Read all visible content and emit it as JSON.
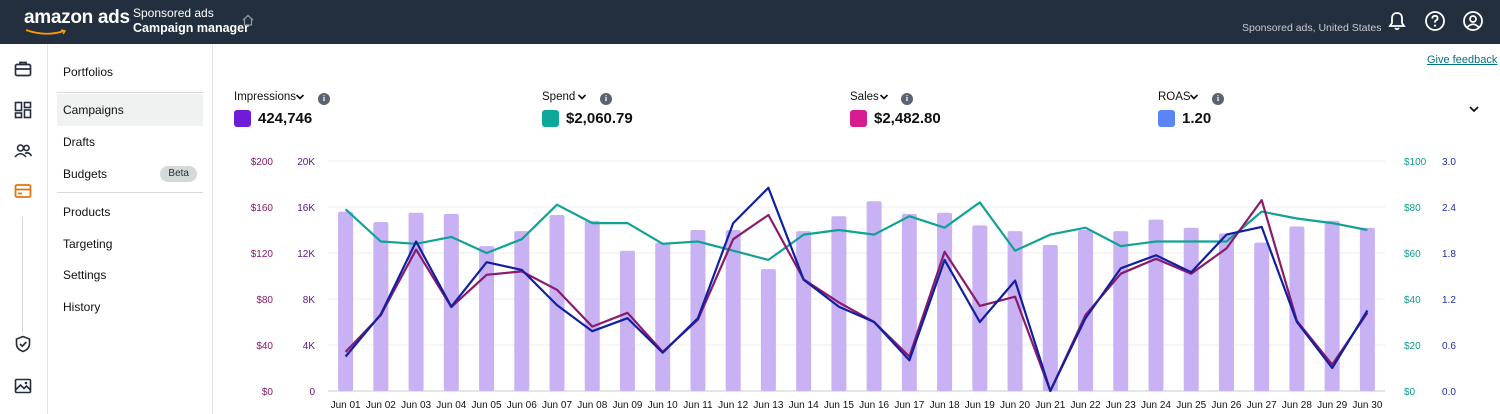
{
  "header": {
    "logo_text": "amazon ads",
    "breadcrumb_top": "Sponsored ads",
    "breadcrumb_bottom": "Campaign manager",
    "account": "Sponsored ads, United States",
    "icons": [
      "bell-icon",
      "help-icon",
      "user-icon"
    ]
  },
  "rail": {
    "icons": [
      "briefcase-icon",
      "dashboard-icon",
      "audience-icon",
      "campaign-card-icon",
      "shield-icon",
      "image-icon"
    ],
    "active_color": "#ff9900"
  },
  "subnav": {
    "items": [
      {
        "label": "Portfolios"
      },
      {
        "label": "Campaigns",
        "active": true
      },
      {
        "label": "Drafts"
      },
      {
        "label": "Budgets",
        "badge": "Beta"
      },
      {
        "label": "Products"
      },
      {
        "label": "Targeting"
      },
      {
        "label": "Settings"
      },
      {
        "label": "History"
      }
    ]
  },
  "feedback_link": "Give feedback",
  "metrics": [
    {
      "label": "Impressions",
      "value": "424,746",
      "color": "#6f1cd9"
    },
    {
      "label": "Spend",
      "value": "$2,060.79",
      "color": "#0ea89a"
    },
    {
      "label": "Sales",
      "value": "$2,482.80",
      "color": "#d61c8f"
    },
    {
      "label": "ROAS",
      "value": "1.20",
      "color": "#5b84f4"
    }
  ],
  "chart_data": {
    "type": "bar",
    "categories": [
      "Jun 01",
      "Jun 02",
      "Jun 03",
      "Jun 04",
      "Jun 05",
      "Jun 06",
      "Jun 07",
      "Jun 08",
      "Jun 09",
      "Jun 10",
      "Jun 11",
      "Jun 12",
      "Jun 13",
      "Jun 14",
      "Jun 15",
      "Jun 16",
      "Jun 17",
      "Jun 18",
      "Jun 19",
      "Jun 20",
      "Jun 21",
      "Jun 22",
      "Jun 23",
      "Jun 24",
      "Jun 25",
      "Jun 26",
      "Jun 27",
      "Jun 28",
      "Jun 29",
      "Jun 30"
    ],
    "grid": true,
    "axes": [
      {
        "id": "sales",
        "side": "left-outer",
        "ticks": [
          "$0",
          "$40",
          "$80",
          "$120",
          "$160",
          "$200"
        ],
        "range": [
          0,
          200
        ],
        "color": "#8a1a6b"
      },
      {
        "id": "impressions",
        "side": "left-inner",
        "ticks": [
          "0",
          "4K",
          "8K",
          "12K",
          "16K",
          "20K"
        ],
        "range": [
          0,
          20000
        ],
        "color": "#5a148c"
      },
      {
        "id": "spend",
        "side": "right-inner",
        "ticks": [
          "$0",
          "$20",
          "$40",
          "$60",
          "$80",
          "$100"
        ],
        "range": [
          0,
          100
        ],
        "color": "#0e9e8f"
      },
      {
        "id": "roas",
        "side": "right-outer",
        "ticks": [
          "0.0",
          "0.6",
          "1.2",
          "1.8",
          "2.4",
          "3.0"
        ],
        "range": [
          0,
          3
        ],
        "color": "#1e2fa0"
      }
    ],
    "series": [
      {
        "id": "impressions",
        "kind": "bar",
        "axis": "impressions",
        "color": "#c9b2f4",
        "values": [
          15600,
          14700,
          15500,
          15400,
          12600,
          13900,
          15300,
          14800,
          12200,
          12900,
          14000,
          14000,
          10600,
          13900,
          15200,
          16500,
          15400,
          15500,
          14400,
          13900,
          12700,
          14000,
          13900,
          14900,
          14200,
          13700,
          12900,
          14300,
          14800,
          14200
        ]
      },
      {
        "id": "spend",
        "kind": "line",
        "axis": "spend",
        "color": "#10a295",
        "values": [
          79,
          65,
          64,
          67,
          60,
          66,
          81,
          73,
          73,
          64,
          65,
          61,
          57,
          68,
          70,
          68,
          76,
          71,
          82,
          61,
          68,
          71,
          63,
          65,
          65,
          65,
          78,
          75,
          73,
          70
        ]
      },
      {
        "id": "sales",
        "kind": "line",
        "axis": "sales",
        "color": "#8a1a6b",
        "values": [
          34,
          66,
          123,
          73,
          101,
          104,
          88,
          56,
          68,
          34,
          62,
          132,
          153,
          97,
          77,
          60,
          30,
          121,
          74,
          82,
          0,
          66,
          102,
          115,
          102,
          124,
          166,
          61,
          23,
          68
        ]
      },
      {
        "id": "roas",
        "kind": "line",
        "axis": "roas",
        "color": "#1020a0",
        "values": [
          0.45,
          1.0,
          1.95,
          1.1,
          1.68,
          1.58,
          1.12,
          0.78,
          0.95,
          0.5,
          0.95,
          2.19,
          2.65,
          1.45,
          1.1,
          0.9,
          0.4,
          1.71,
          0.9,
          1.44,
          0.0,
          0.95,
          1.6,
          1.77,
          1.55,
          2.04,
          2.14,
          0.9,
          0.3,
          1.05
        ]
      }
    ]
  }
}
